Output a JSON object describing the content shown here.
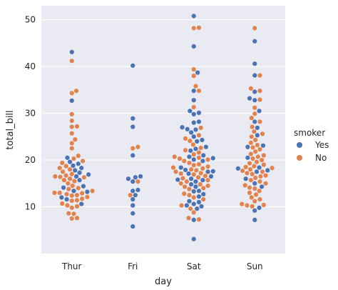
{
  "chart_data": {
    "type": "scatter",
    "kind": "swarm",
    "title": "",
    "xlabel": "day",
    "ylabel": "total_bill",
    "categories": [
      "Thur",
      "Fri",
      "Sat",
      "Sun"
    ],
    "ylim": [
      0,
      53
    ],
    "yticks": [
      10,
      20,
      30,
      40,
      50
    ],
    "grid": true,
    "legend": {
      "title": "smoker",
      "placement": "right",
      "entries": [
        "Yes",
        "No"
      ]
    },
    "colors": {
      "Yes": "#4c72b0",
      "No": "#dd8452",
      "background": "#eaeaf2",
      "grid": "#ffffff"
    },
    "series": [
      {
        "name": "Yes",
        "values": {
          "Thur": [
            10.6,
            11.6,
            12.0,
            13.2,
            13.4,
            14.1,
            14.4,
            15.7,
            16.5,
            16.9,
            17.3,
            17.8,
            18.3,
            18.8,
            19.2,
            19.6,
            20.5,
            32.7,
            43.1
          ],
          "Fri": [
            5.8,
            8.6,
            10.3,
            11.6,
            12.5,
            13.4,
            13.6,
            15.4,
            16.0,
            16.3,
            16.5,
            21.0,
            27.1,
            28.9,
            40.2
          ],
          "Sat": [
            3.1,
            7.2,
            9.6,
            10.1,
            10.3,
            10.6,
            11.0,
            11.2,
            12.2,
            12.7,
            13.3,
            13.4,
            14.3,
            14.8,
            15.4,
            15.7,
            15.8,
            16.0,
            16.5,
            17.1,
            17.5,
            17.6,
            17.9,
            18.4,
            19.8,
            20.1,
            20.4,
            20.7,
            21.0,
            22.0,
            22.4,
            22.8,
            24.0,
            24.3,
            25.0,
            25.9,
            26.5,
            26.6,
            27.0,
            28.0,
            28.2,
            29.8,
            30.1,
            30.5,
            32.8,
            34.8,
            38.7,
            44.3,
            50.8
          ],
          "Sun": [
            7.2,
            9.2,
            9.8,
            14.3,
            15.0,
            16.0,
            17.5,
            17.8,
            18.2,
            18.4,
            20.5,
            22.8,
            23.1,
            25.3,
            26.9,
            28.2,
            30.5,
            32.8,
            33.2,
            34.6,
            38.1,
            40.6,
            45.4
          ]
        }
      },
      {
        "name": "No",
        "values": {
          "Thur": [
            7.5,
            7.6,
            8.5,
            8.6,
            9.8,
            10.1,
            10.3,
            10.7,
            11.3,
            11.4,
            11.7,
            12.1,
            12.4,
            12.5,
            12.7,
            12.9,
            13.0,
            13.0,
            13.4,
            13.8,
            14.0,
            14.5,
            15.0,
            15.5,
            15.7,
            16.0,
            16.3,
            16.4,
            16.5,
            16.7,
            17.0,
            17.5,
            18.0,
            18.3,
            18.7,
            19.4,
            19.8,
            20.3,
            20.9,
            22.5,
            23.6,
            24.4,
            25.7,
            27.1,
            27.2,
            28.4,
            29.8,
            34.3,
            34.8,
            41.2
          ],
          "Fri": [
            12.5,
            15.4,
            22.5,
            22.8
          ],
          "Sat": [
            7.3,
            7.6,
            8.8,
            9.6,
            10.3,
            11.6,
            12.0,
            12.5,
            12.8,
            13.8,
            14.0,
            14.3,
            14.5,
            14.8,
            15.0,
            15.4,
            15.7,
            16.1,
            16.3,
            16.6,
            16.9,
            17.1,
            17.2,
            17.5,
            17.8,
            18.0,
            18.2,
            18.4,
            18.6,
            18.9,
            19.1,
            19.4,
            19.8,
            20.1,
            20.3,
            20.5,
            20.7,
            21.2,
            21.6,
            22.1,
            22.6,
            23.3,
            24.1,
            24.6,
            25.3,
            26.9,
            31.3,
            34.8,
            35.8,
            38.0,
            39.4,
            48.2,
            48.3
          ],
          "Sun": [
            10.1,
            10.3,
            10.4,
            10.6,
            11.2,
            11.6,
            12.0,
            12.6,
            13.0,
            13.4,
            13.9,
            14.1,
            14.6,
            15.0,
            15.4,
            15.7,
            16.2,
            16.5,
            16.7,
            17.0,
            17.2,
            17.5,
            17.7,
            18.0,
            18.3,
            18.5,
            18.7,
            19.0,
            19.3,
            19.6,
            20.0,
            20.3,
            20.7,
            21.0,
            21.3,
            21.8,
            22.3,
            22.7,
            23.2,
            23.7,
            24.3,
            25.0,
            25.6,
            26.1,
            27.1,
            28.2,
            29.0,
            29.9,
            31.2,
            32.9,
            34.8,
            35.3,
            38.1,
            48.2
          ]
        }
      }
    ]
  }
}
